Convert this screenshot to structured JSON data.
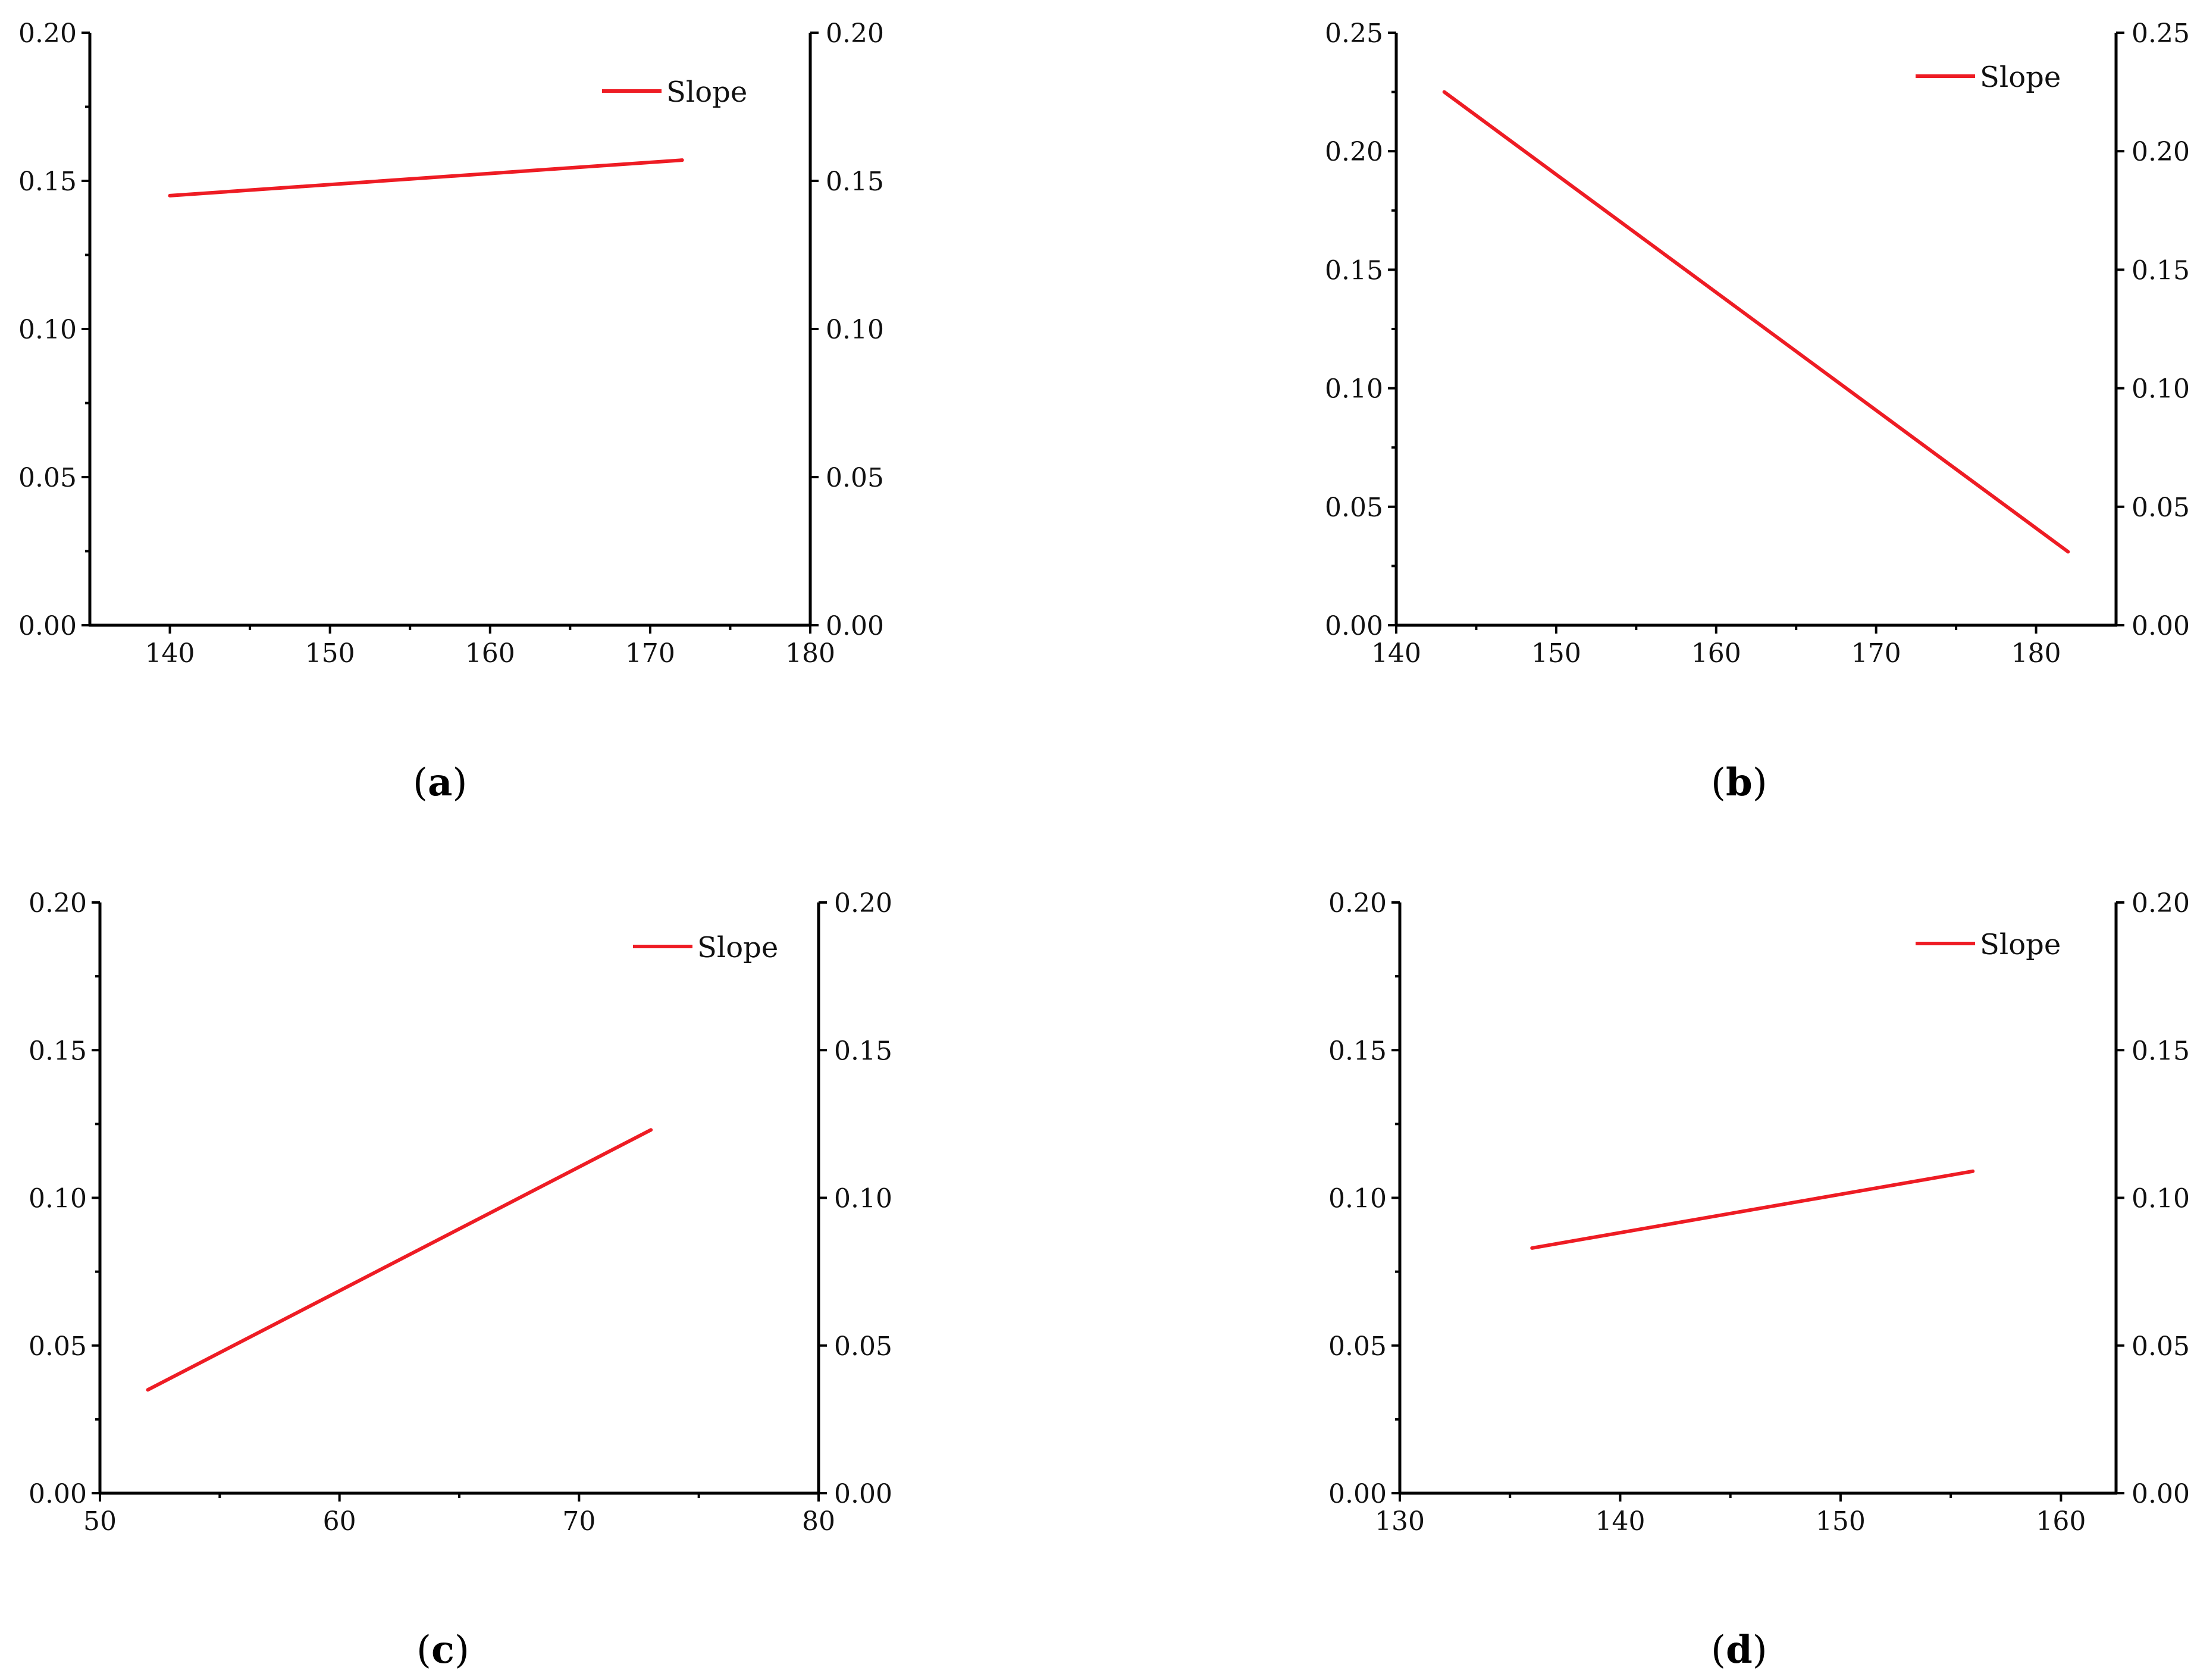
{
  "colors": {
    "series": "#ee1c24",
    "axis": "#000000"
  },
  "chart_data": [
    {
      "type": "line",
      "panel_label": "a",
      "xlim": [
        135,
        180
      ],
      "ylim": [
        0,
        0.2
      ],
      "x_ticks": [
        "140",
        "150",
        "160",
        "170",
        "180"
      ],
      "x_tick_values": [
        140,
        150,
        160,
        170,
        180
      ],
      "y_ticks": [
        "0.00",
        "0.05",
        "0.10",
        "0.15",
        "0.20"
      ],
      "y_tick_values": [
        0,
        0.05,
        0.1,
        0.15,
        0.2
      ],
      "right_axis": true,
      "legend": {
        "placement": "top-right",
        "entries": [
          "Slope"
        ]
      },
      "series": [
        {
          "name": "Slope",
          "x": [
            140,
            172
          ],
          "y": [
            0.145,
            0.157
          ]
        }
      ]
    },
    {
      "type": "line",
      "panel_label": "b",
      "xlim": [
        140,
        185
      ],
      "ylim": [
        0,
        0.25
      ],
      "x_ticks": [
        "140",
        "150",
        "160",
        "170",
        "180"
      ],
      "x_tick_values": [
        140,
        150,
        160,
        170,
        180
      ],
      "y_ticks": [
        "0.00",
        "0.05",
        "0.10",
        "0.15",
        "0.20",
        "0.25"
      ],
      "y_tick_values": [
        0,
        0.05,
        0.1,
        0.15,
        0.2,
        0.25
      ],
      "right_axis": true,
      "legend": {
        "placement": "top-right",
        "entries": [
          "Slope"
        ]
      },
      "series": [
        {
          "name": "Slope",
          "x": [
            143,
            182
          ],
          "y": [
            0.225,
            0.031
          ]
        }
      ]
    },
    {
      "type": "line",
      "panel_label": "c",
      "xlim": [
        50,
        80
      ],
      "ylim": [
        0,
        0.2
      ],
      "x_ticks": [
        "50",
        "60",
        "70",
        "80"
      ],
      "x_tick_values": [
        50,
        60,
        70,
        80
      ],
      "y_ticks": [
        "0.00",
        "0.05",
        "0.10",
        "0.15",
        "0.20"
      ],
      "y_tick_values": [
        0,
        0.05,
        0.1,
        0.15,
        0.2
      ],
      "right_axis": true,
      "legend": {
        "placement": "top-right",
        "entries": [
          "Slope"
        ]
      },
      "series": [
        {
          "name": "Slope",
          "x": [
            52,
            73
          ],
          "y": [
            0.035,
            0.123
          ]
        }
      ]
    },
    {
      "type": "line",
      "panel_label": "d",
      "xlim": [
        130,
        162.5
      ],
      "ylim": [
        0,
        0.2
      ],
      "x_ticks": [
        "130",
        "140",
        "150",
        "160"
      ],
      "x_tick_values": [
        130,
        140,
        150,
        160
      ],
      "y_ticks": [
        "0.00",
        "0.05",
        "0.10",
        "0.15",
        "0.20"
      ],
      "y_tick_values": [
        0,
        0.05,
        0.1,
        0.15,
        0.2
      ],
      "right_axis": true,
      "legend": {
        "placement": "top-right",
        "entries": [
          "Slope"
        ]
      },
      "series": [
        {
          "name": "Slope",
          "x": [
            136,
            156
          ],
          "y": [
            0.083,
            0.109
          ]
        }
      ]
    }
  ]
}
